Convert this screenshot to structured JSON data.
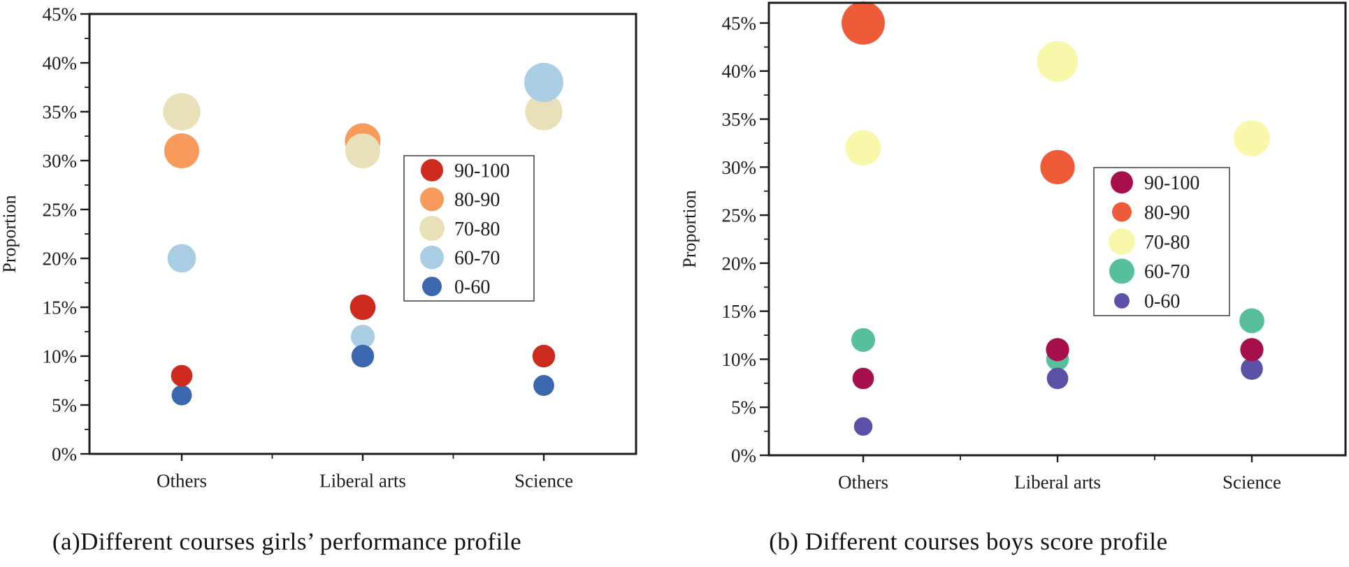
{
  "figure": {
    "background": "#ffffff",
    "ink_color": "#1c1c1c"
  },
  "chart_data": [
    {
      "type": "bubble",
      "title": "(a)Different courses girls’ performance profile",
      "xlabel": "",
      "ylabel": "Proportion",
      "ylim": [
        0,
        45
      ],
      "ytick_step": 5,
      "yticks": [
        "0%",
        "5%",
        "10%",
        "15%",
        "20%",
        "25%",
        "30%",
        "35%",
        "40%",
        "45%"
      ],
      "grid": false,
      "legend_position": "inside-center-right",
      "categories": [
        "Others",
        "Liberal arts",
        "Science"
      ],
      "series": [
        {
          "name": "90-100",
          "color": "#cd2a1e",
          "legend_r": 16,
          "values": [
            8,
            15,
            10
          ]
        },
        {
          "name": "80-90",
          "color": "#f89a5c",
          "legend_r": 17,
          "values": [
            31,
            32,
            null
          ]
        },
        {
          "name": "70-80",
          "color": "#e9e0ba",
          "legend_r": 18,
          "values": [
            35,
            31,
            35
          ]
        },
        {
          "name": "60-70",
          "color": "#a9cde3",
          "legend_r": 17,
          "values": [
            20,
            12,
            38
          ]
        },
        {
          "name": "0-60",
          "color": "#3a67ae",
          "legend_r": 14,
          "values": [
            6,
            10,
            7
          ]
        }
      ]
    },
    {
      "type": "bubble",
      "title": "(b) Different courses boys score profile",
      "xlabel": "",
      "ylabel": "Proportion",
      "ylim": [
        0,
        45
      ],
      "ytick_step": 5,
      "yticks": [
        "0%",
        "5%",
        "10%",
        "15%",
        "20%",
        "25%",
        "30%",
        "35%",
        "40%",
        "45%"
      ],
      "grid": false,
      "legend_position": "inside-center-right",
      "categories": [
        "Others",
        "Liberal arts",
        "Science"
      ],
      "series": [
        {
          "name": "90-100",
          "color": "#a50f4c",
          "legend_r": 16,
          "values": [
            8,
            11,
            11
          ]
        },
        {
          "name": "80-90",
          "color": "#ee5b38",
          "legend_r": 14,
          "values": [
            45,
            30,
            null
          ]
        },
        {
          "name": "70-80",
          "color": "#f9f7aa",
          "legend_r": 19,
          "values": [
            32,
            41,
            33
          ]
        },
        {
          "name": "60-70",
          "color": "#58bf9b",
          "legend_r": 18,
          "values": [
            12,
            10,
            14
          ]
        },
        {
          "name": "0-60",
          "color": "#5b51a7",
          "legend_r": 11,
          "values": [
            3,
            8,
            9
          ]
        }
      ]
    }
  ]
}
